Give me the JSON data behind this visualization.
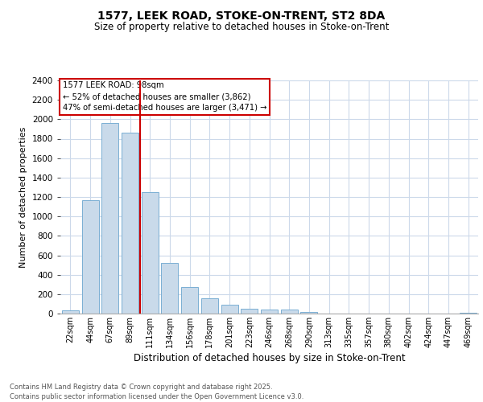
{
  "title": "1577, LEEK ROAD, STOKE-ON-TRENT, ST2 8DA",
  "subtitle": "Size of property relative to detached houses in Stoke-on-Trent",
  "xlabel": "Distribution of detached houses by size in Stoke-on-Trent",
  "ylabel": "Number of detached properties",
  "categories": [
    "22sqm",
    "44sqm",
    "67sqm",
    "89sqm",
    "111sqm",
    "134sqm",
    "156sqm",
    "178sqm",
    "201sqm",
    "223sqm",
    "246sqm",
    "268sqm",
    "290sqm",
    "313sqm",
    "335sqm",
    "357sqm",
    "380sqm",
    "402sqm",
    "424sqm",
    "447sqm",
    "469sqm"
  ],
  "values": [
    30,
    1170,
    1960,
    1860,
    1250,
    520,
    275,
    155,
    90,
    50,
    40,
    40,
    15,
    0,
    0,
    0,
    0,
    0,
    0,
    0,
    5
  ],
  "bar_color": "#c9daea",
  "bar_edge_color": "#7aafd4",
  "vline_x": 3.5,
  "vline_color": "#cc0000",
  "annotation_title": "1577 LEEK ROAD: 98sqm",
  "annotation_line1": "← 52% of detached houses are smaller (3,862)",
  "annotation_line2": "47% of semi-detached houses are larger (3,471) →",
  "annotation_box_color": "white",
  "annotation_box_edge_color": "#cc0000",
  "ylim": [
    0,
    2400
  ],
  "yticks": [
    0,
    200,
    400,
    600,
    800,
    1000,
    1200,
    1400,
    1600,
    1800,
    2000,
    2200,
    2400
  ],
  "footer_line1": "Contains HM Land Registry data © Crown copyright and database right 2025.",
  "footer_line2": "Contains public sector information licensed under the Open Government Licence v3.0.",
  "background_color": "#ffffff",
  "grid_color": "#ccd9ea"
}
